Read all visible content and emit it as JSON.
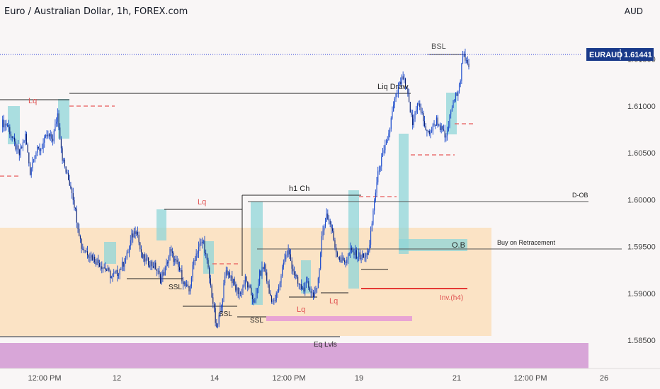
{
  "header": {
    "title": "Euro / Australian Dollar, 1h, FOREX.com",
    "currency": "AUD"
  },
  "price_label": {
    "symbol": "EURAUD",
    "price": "1.61441"
  },
  "colors": {
    "background": "#f9f6f6",
    "candle": "#1848cc",
    "range_zone": "#fbe3c5",
    "highlight_box": "#8fd6d8",
    "eq_zone": "#d8a6d8",
    "pink_bar": "#e8a4d4",
    "red_dash": "#e85a5a",
    "inv_line": "#e53935",
    "label_red": "#e05252",
    "axis_text": "#444444",
    "price_badge": "#1a3a8a"
  },
  "chart_data": {
    "type": "candlestick",
    "symbol": "EURAUD",
    "timeframe": "1h",
    "ylim": [
      1.582,
      1.6195
    ],
    "y_ticks": [
      "1.61500",
      "1.61000",
      "1.60500",
      "1.60000",
      "1.59500",
      "1.59000",
      "1.58500"
    ],
    "x_ticks": [
      "12:00 PM",
      "12",
      "14",
      "12:00 PM",
      "19",
      "12:00 PM",
      "21",
      "12:00 PM",
      "26"
    ],
    "close_path": [
      [
        0,
        1.6082
      ],
      [
        5,
        1.608
      ],
      [
        10,
        1.6062
      ],
      [
        15,
        1.6048
      ],
      [
        20,
        1.6068
      ],
      [
        24,
        1.603
      ],
      [
        28,
        1.605
      ],
      [
        33,
        1.6055
      ],
      [
        38,
        1.6068
      ],
      [
        43,
        1.6065
      ],
      [
        47,
        1.6092
      ],
      [
        51,
        1.6045
      ],
      [
        55,
        1.6025
      ],
      [
        59,
        1.601
      ],
      [
        63,
        1.598
      ],
      [
        67,
        1.595
      ],
      [
        71,
        1.5945
      ],
      [
        75,
        1.594
      ],
      [
        79,
        1.5935
      ],
      [
        84,
        1.593
      ],
      [
        88,
        1.5925
      ],
      [
        92,
        1.5918
      ],
      [
        97,
        1.5922
      ],
      [
        101,
        1.593
      ],
      [
        105,
        1.594
      ],
      [
        109,
        1.596
      ],
      [
        113,
        1.597
      ],
      [
        117,
        1.594
      ],
      [
        121,
        1.5935
      ],
      [
        125,
        1.5932
      ],
      [
        129,
        1.5928
      ],
      [
        133,
        1.5915
      ],
      [
        137,
        1.5925
      ],
      [
        141,
        1.5945
      ],
      [
        145,
        1.5935
      ],
      [
        149,
        1.5925
      ],
      [
        153,
        1.591
      ],
      [
        157,
        1.5902
      ],
      [
        161,
        1.5935
      ],
      [
        165,
        1.595
      ],
      [
        169,
        1.5955
      ],
      [
        173,
        1.5925
      ],
      [
        177,
        1.589
      ],
      [
        180,
        1.586
      ],
      [
        184,
        1.589
      ],
      [
        188,
        1.5925
      ],
      [
        192,
        1.5918
      ],
      [
        196,
        1.5905
      ],
      [
        200,
        1.59
      ],
      [
        204,
        1.5915
      ],
      [
        208,
        1.5902
      ],
      [
        212,
        1.589
      ],
      [
        216,
        1.592
      ],
      [
        220,
        1.593
      ],
      [
        224,
        1.59
      ],
      [
        228,
        1.589
      ],
      [
        232,
        1.5905
      ],
      [
        236,
        1.5935
      ],
      [
        240,
        1.5945
      ],
      [
        244,
        1.5925
      ],
      [
        248,
        1.591
      ],
      [
        252,
        1.5905
      ],
      [
        256,
        1.591
      ],
      [
        260,
        1.59
      ],
      [
        264,
        1.5902
      ],
      [
        268,
        1.596
      ],
      [
        272,
        1.5985
      ],
      [
        276,
        1.597
      ],
      [
        280,
        1.5945
      ],
      [
        284,
        1.5935
      ],
      [
        288,
        1.5935
      ],
      [
        292,
        1.5945
      ],
      [
        296,
        1.5942
      ],
      [
        300,
        1.594
      ],
      [
        304,
        1.5938
      ],
      [
        308,
        1.595
      ],
      [
        312,
        1.6
      ],
      [
        316,
        1.6035
      ],
      [
        320,
        1.605
      ],
      [
        324,
        1.607
      ],
      [
        328,
        1.61
      ],
      [
        332,
        1.612
      ],
      [
        336,
        1.613
      ],
      [
        340,
        1.611
      ],
      [
        344,
        1.608
      ],
      [
        348,
        1.6105
      ],
      [
        352,
        1.609
      ],
      [
        356,
        1.607
      ],
      [
        360,
        1.6075
      ],
      [
        364,
        1.6085
      ],
      [
        368,
        1.6075
      ],
      [
        372,
        1.6065
      ],
      [
        376,
        1.6095
      ],
      [
        380,
        1.611
      ],
      [
        384,
        1.613
      ],
      [
        386,
        1.6155
      ],
      [
        388,
        1.6147
      ],
      [
        391,
        1.6144
      ]
    ],
    "price_axis_tag": 1.61441
  },
  "annotations": {
    "lq_top": "Lq",
    "liq_draw": "Liq Draw",
    "bsl": "BSL",
    "h1_ch": "h1 Ch",
    "lq_mid": "Lq",
    "d_ob": "D-OB",
    "ob": "O.B",
    "buy_on_retracement": "Buy on Retracement",
    "ssl_1": "SSL",
    "ssl_2": "SSL",
    "ssl_3": "SSL",
    "lq_low": "Lq",
    "lq_low2": "Lq",
    "inv_h4": "Inv.(h4)",
    "eq_lvls": "Eq Lvls"
  }
}
